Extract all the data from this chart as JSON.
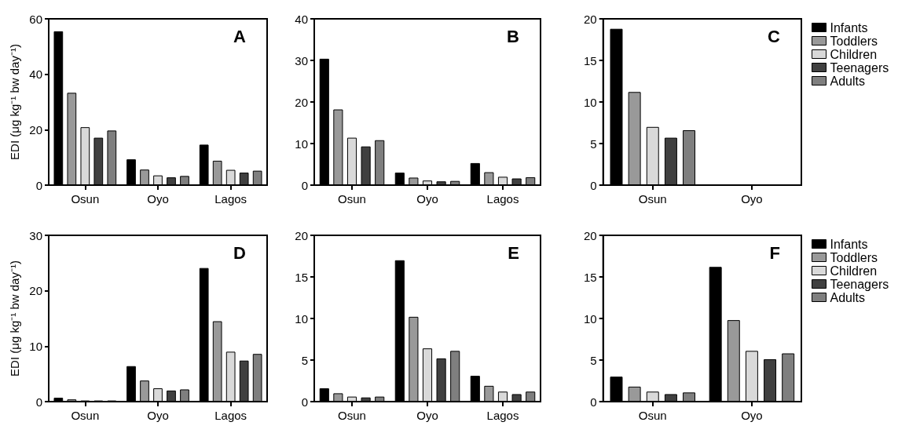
{
  "chart_data": [
    {
      "type": "bar",
      "title": "A",
      "ylabel": "EDI (μg kg⁻¹ bw day⁻¹)",
      "categories": [
        "Osun",
        "Oyo",
        "Lagos"
      ],
      "ylim": [
        0,
        60
      ],
      "yticks": [
        0,
        20,
        40,
        60
      ],
      "grid": false,
      "legend": false,
      "series": [
        {
          "color": "#000000",
          "values": [
            55.5,
            9.3,
            14.6
          ]
        },
        {
          "color": "#999999",
          "values": [
            33.3,
            5.6,
            8.8
          ]
        },
        {
          "color": "#d9d9d9",
          "values": [
            20.9,
            3.5,
            5.5
          ]
        },
        {
          "color": "#404040",
          "values": [
            17.1,
            2.8,
            4.5
          ]
        },
        {
          "color": "#7f7f7f",
          "values": [
            19.7,
            3.3,
            5.2
          ]
        }
      ]
    },
    {
      "type": "bar",
      "title": "B",
      "categories": [
        "Osun",
        "Oyo",
        "Lagos"
      ],
      "ylim": [
        0,
        40
      ],
      "yticks": [
        0,
        10,
        20,
        30,
        40
      ],
      "grid": false,
      "legend": false,
      "series": [
        {
          "color": "#000000",
          "values": [
            30.4,
            3.0,
            5.3
          ]
        },
        {
          "color": "#999999",
          "values": [
            18.2,
            1.8,
            3.1
          ]
        },
        {
          "color": "#d9d9d9",
          "values": [
            11.4,
            1.1,
            2.0
          ]
        },
        {
          "color": "#404040",
          "values": [
            9.3,
            0.9,
            1.6
          ]
        },
        {
          "color": "#7f7f7f",
          "values": [
            10.8,
            1.0,
            1.9
          ]
        }
      ]
    },
    {
      "type": "bar",
      "title": "C",
      "categories": [
        "Osun",
        "Oyo"
      ],
      "ylim": [
        0,
        20
      ],
      "yticks": [
        0,
        5,
        10,
        15,
        20
      ],
      "grid": false,
      "legend": "right",
      "series": [
        {
          "name": "Infants",
          "color": "#000000",
          "values": [
            18.8,
            null
          ]
        },
        {
          "name": "Toddlers",
          "color": "#999999",
          "values": [
            11.2,
            null
          ]
        },
        {
          "name": "Children",
          "color": "#d9d9d9",
          "values": [
            7.0,
            null
          ]
        },
        {
          "name": "Teenagers",
          "color": "#404040",
          "values": [
            5.7,
            null
          ]
        },
        {
          "name": "Adults",
          "color": "#7f7f7f",
          "values": [
            6.6,
            null
          ]
        }
      ]
    },
    {
      "type": "bar",
      "title": "D",
      "ylabel": "EDI (μg kg⁻¹ bw day⁻¹)",
      "categories": [
        "Osun",
        "Oyo",
        "Lagos"
      ],
      "ylim": [
        0,
        30
      ],
      "yticks": [
        0,
        10,
        20,
        30
      ],
      "grid": false,
      "legend": false,
      "series": [
        {
          "color": "#000000",
          "values": [
            0.7,
            6.4,
            24.1
          ]
        },
        {
          "color": "#999999",
          "values": [
            0.4,
            3.8,
            14.5
          ]
        },
        {
          "color": "#d9d9d9",
          "values": [
            0.2,
            2.4,
            9.0
          ]
        },
        {
          "color": "#404040",
          "values": [
            0.2,
            2.0,
            7.4
          ]
        },
        {
          "color": "#7f7f7f",
          "values": [
            0.2,
            2.2,
            8.6
          ]
        }
      ]
    },
    {
      "type": "bar",
      "title": "E",
      "categories": [
        "Osun",
        "Oyo",
        "Lagos"
      ],
      "ylim": [
        0,
        20
      ],
      "yticks": [
        0,
        5,
        10,
        15,
        20
      ],
      "grid": false,
      "legend": false,
      "series": [
        {
          "color": "#000000",
          "values": [
            1.6,
            17.0,
            3.1
          ]
        },
        {
          "color": "#999999",
          "values": [
            1.0,
            10.2,
            1.9
          ]
        },
        {
          "color": "#d9d9d9",
          "values": [
            0.6,
            6.4,
            1.2
          ]
        },
        {
          "color": "#404040",
          "values": [
            0.5,
            5.2,
            0.9
          ]
        },
        {
          "color": "#7f7f7f",
          "values": [
            0.6,
            6.1,
            1.2
          ]
        }
      ]
    },
    {
      "type": "bar",
      "title": "F",
      "categories": [
        "Osun",
        "Oyo"
      ],
      "ylim": [
        0,
        20
      ],
      "yticks": [
        0,
        5,
        10,
        15,
        20
      ],
      "grid": false,
      "legend": "right",
      "series": [
        {
          "name": "Infants",
          "color": "#000000",
          "values": [
            3.0,
            16.2
          ]
        },
        {
          "name": "Toddlers",
          "color": "#999999",
          "values": [
            1.8,
            9.8
          ]
        },
        {
          "name": "Children",
          "color": "#d9d9d9",
          "values": [
            1.2,
            6.1
          ]
        },
        {
          "name": "Teenagers",
          "color": "#404040",
          "values": [
            0.9,
            5.1
          ]
        },
        {
          "name": "Adults",
          "color": "#7f7f7f",
          "values": [
            1.1,
            5.8
          ]
        }
      ]
    }
  ]
}
